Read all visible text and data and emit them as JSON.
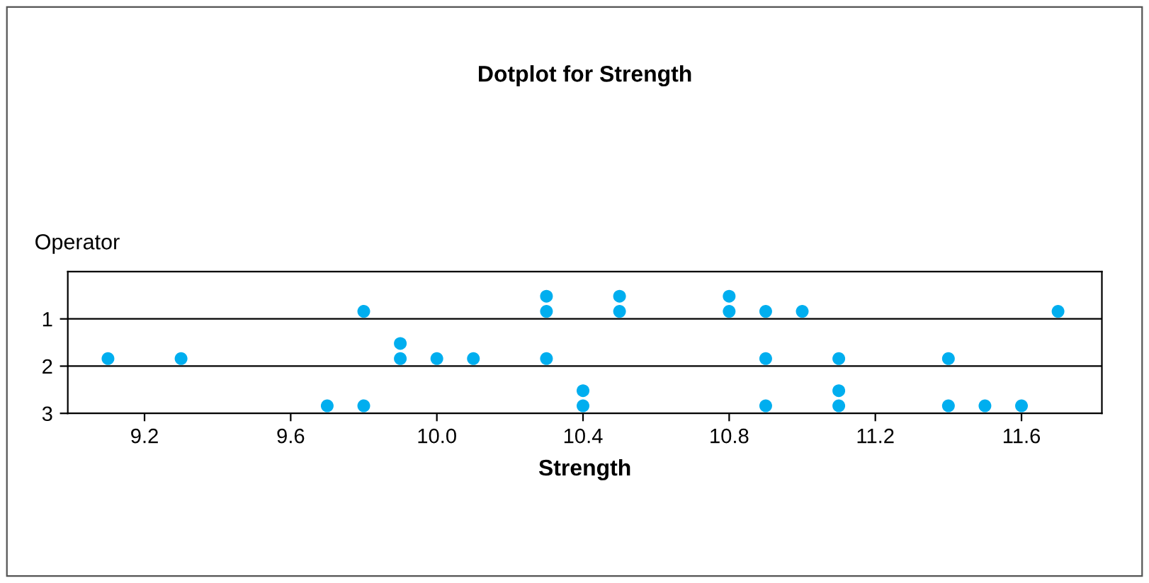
{
  "chart_data": {
    "type": "scatter",
    "title": "Dotplot for Strength",
    "xlabel": "Strength",
    "ylabel": "Operator",
    "x": [
      9.8,
      10.3,
      10.3,
      10.5,
      10.5,
      10.8,
      10.8,
      10.9,
      11.0,
      11.7,
      9.1,
      9.3,
      9.9,
      9.9,
      10.0,
      10.1,
      10.3,
      10.9,
      11.1,
      11.4,
      9.7,
      9.8,
      10.4,
      10.4,
      10.9,
      11.1,
      11.1,
      11.4,
      11.5,
      11.6
    ],
    "values": [
      0.84,
      0.84,
      0.52,
      0.84,
      0.52,
      0.84,
      0.52,
      0.84,
      0.84,
      0.84,
      1.84,
      1.84,
      1.84,
      1.52,
      1.84,
      1.84,
      1.84,
      1.84,
      1.84,
      1.84,
      2.84,
      2.84,
      2.84,
      2.52,
      2.84,
      2.84,
      2.52,
      2.84,
      2.84,
      2.84
    ],
    "color": "#00aeef",
    "marker": "circle",
    "xlim": [
      8.99,
      11.82
    ],
    "xticks": [
      9.2,
      9.6,
      {
        "value": 10.0,
        "label": "10.0"
      },
      10.4,
      10.8,
      11.2,
      11.6
    ],
    "ylim": [
      3,
      0
    ],
    "yticks": [
      1,
      2,
      3
    ],
    "grid": "y"
  }
}
